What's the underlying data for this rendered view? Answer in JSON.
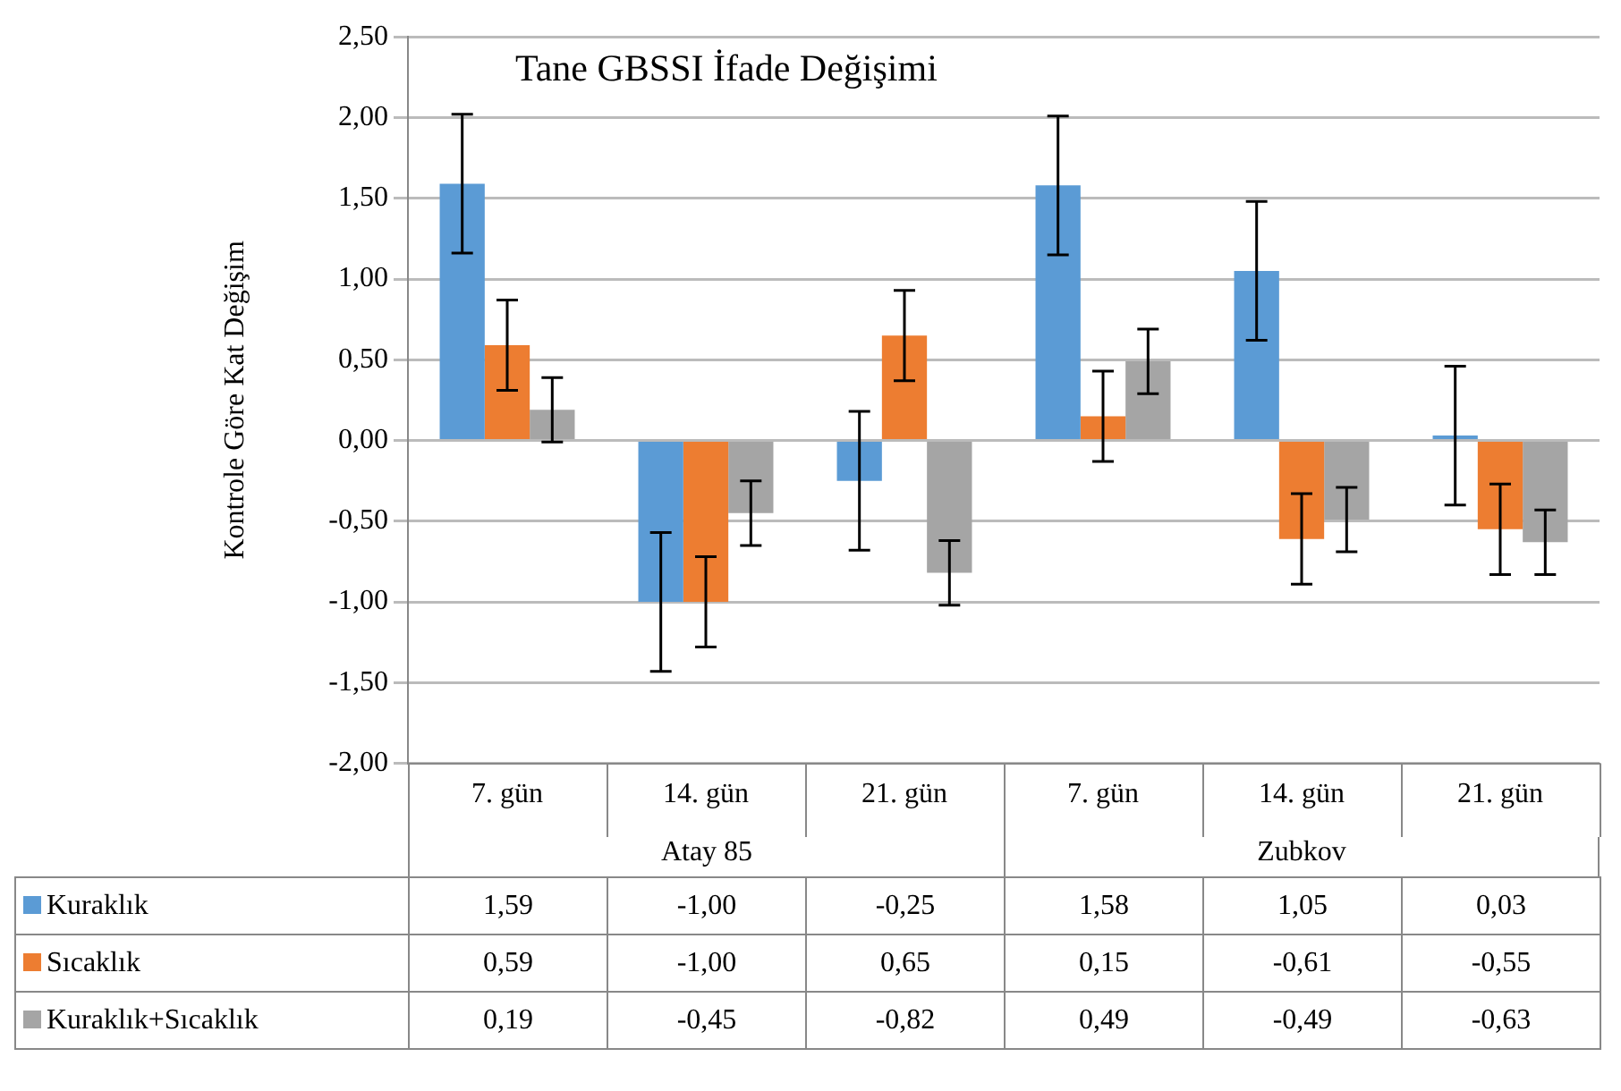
{
  "chart_data": {
    "type": "bar",
    "title": "Tane GBSSI İfade Değişimi",
    "ylabel": "Kontrole Göre Kat Değişim",
    "categories": [
      "7. gün",
      "14. gün",
      "21. gün",
      "7. gün",
      "14. gün",
      "21. gün"
    ],
    "annotations": [
      "Atay 85",
      "Zubkov"
    ],
    "series": [
      {
        "name": "Kuraklık",
        "color": "#5b9bd5",
        "values": [
          1.59,
          -1.0,
          -0.25,
          1.58,
          1.05,
          0.03
        ],
        "errors": [
          0.43,
          0.43,
          0.43,
          0.43,
          0.43,
          0.43
        ],
        "value_labels": [
          "1,59",
          "-1,00",
          "-0,25",
          "1,58",
          "1,05",
          "0,03"
        ]
      },
      {
        "name": "Sıcaklık",
        "color": "#ed7d31",
        "values": [
          0.59,
          -1.0,
          0.65,
          0.15,
          -0.61,
          -0.55
        ],
        "errors": [
          0.28,
          0.28,
          0.28,
          0.28,
          0.28,
          0.28
        ],
        "value_labels": [
          "0,59",
          "-1,00",
          "0,65",
          "0,15",
          "-0,61",
          "-0,55"
        ]
      },
      {
        "name": "Kuraklık+Sıcaklık",
        "color": "#a5a5a5",
        "values": [
          0.19,
          -0.45,
          -0.82,
          0.49,
          -0.49,
          -0.63
        ],
        "errors": [
          0.2,
          0.2,
          0.2,
          0.2,
          0.2,
          0.2
        ],
        "value_labels": [
          "0,19",
          "-0,45",
          "-0,82",
          "0,49",
          "-0,49",
          "-0,63"
        ]
      }
    ],
    "ylim": [
      -2.0,
      2.5
    ],
    "yticks": [
      {
        "value": 2.5,
        "label": "2,50"
      },
      {
        "value": 2.0,
        "label": "2,00"
      },
      {
        "value": 1.5,
        "label": "1,50"
      },
      {
        "value": 1.0,
        "label": "1,00"
      },
      {
        "value": 0.5,
        "label": "0,50"
      },
      {
        "value": 0.0,
        "label": "0,00"
      },
      {
        "value": -0.5,
        "label": "-0,50"
      },
      {
        "value": -1.0,
        "label": "-1,00"
      },
      {
        "value": -1.5,
        "label": "-1,50"
      },
      {
        "value": -2.0,
        "label": "-2,00"
      }
    ],
    "grid": "y",
    "legend": "bottom left"
  }
}
